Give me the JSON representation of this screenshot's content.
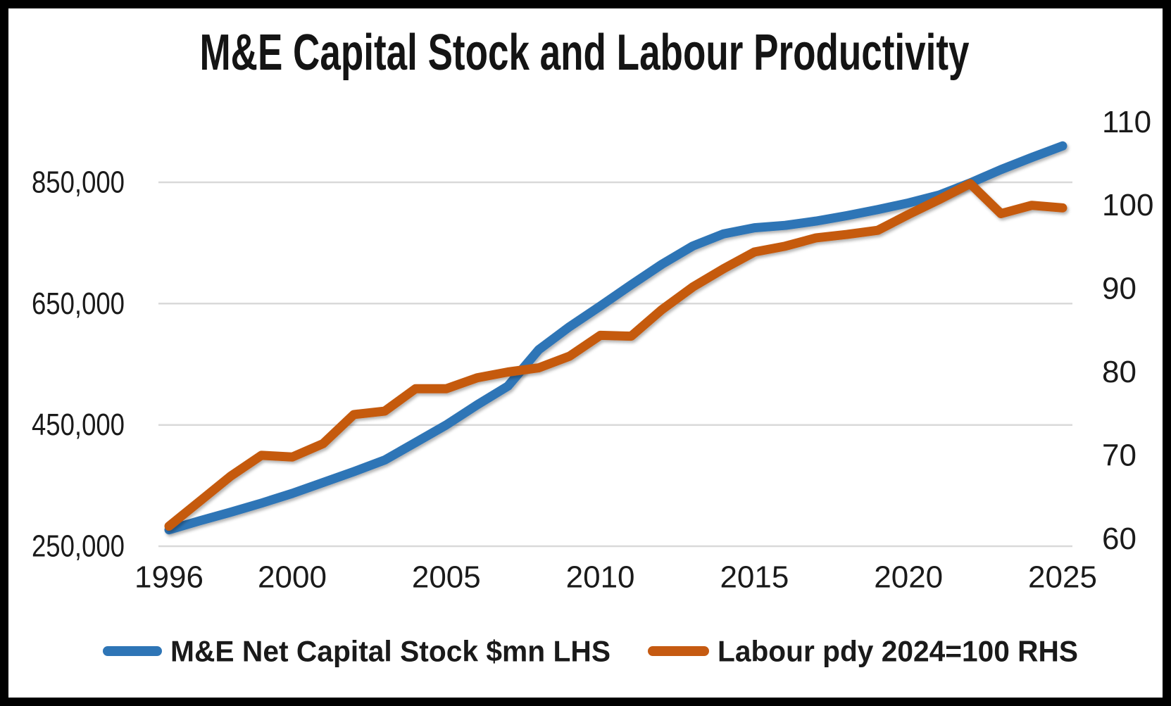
{
  "title": "M&E Capital Stock and Labour Productivity",
  "legend": {
    "items": [
      {
        "label": "M&E Net Capital Stock $mn LHS",
        "color": "#2E75B6"
      },
      {
        "label": "Labour pdy 2024=100 RHS",
        "color": "#C55A11"
      }
    ]
  },
  "colors": {
    "background": "#FFFFFF",
    "frame": "#000000",
    "gridline": "#D9D9D9",
    "text": "#1A1A1A",
    "series_blue": "#2E75B6",
    "series_orange": "#C55A11"
  },
  "chart_data": {
    "type": "line",
    "title": "M&E Capital Stock and Labour Productivity",
    "x": [
      1996,
      1997,
      1998,
      1999,
      2000,
      2001,
      2002,
      2003,
      2004,
      2005,
      2006,
      2007,
      2008,
      2009,
      2010,
      2011,
      2012,
      2013,
      2014,
      2015,
      2016,
      2017,
      2018,
      2019,
      2020,
      2021,
      2022,
      2023,
      2024,
      2025
    ],
    "x_tick_labels": [
      "1996",
      "2000",
      "2005",
      "2010",
      "2015",
      "2020",
      "2025"
    ],
    "left_axis": {
      "label": "M&E Net Capital Stock $mn",
      "tick_labels": [
        "850,000",
        "650,000",
        "450,000",
        "250,000"
      ],
      "tick_values": [
        850000,
        650000,
        450000,
        250000
      ],
      "range": [
        250000,
        950000
      ]
    },
    "right_axis": {
      "label": "Labour pdy 2024=100",
      "tick_labels": [
        "110",
        "100",
        "90",
        "80",
        "70",
        "60"
      ],
      "tick_values": [
        110,
        100,
        90,
        80,
        70,
        60
      ],
      "range": [
        60,
        110
      ]
    },
    "grid": "horizontal-gridlines-on",
    "legend_position": "bottom",
    "series": [
      {
        "name": "M&E Net Capital Stock $mn LHS",
        "axis": "left",
        "color": "#2E75B6",
        "values": [
          277000,
          292000,
          306000,
          321000,
          337000,
          355000,
          373000,
          392000,
          421000,
          450000,
          483000,
          514000,
          574000,
          612000,
          646000,
          681000,
          715000,
          745000,
          765000,
          775000,
          779000,
          786000,
          795000,
          805000,
          816000,
          829000,
          849000,
          871000,
          891000,
          910000
        ]
      },
      {
        "name": "Labour pdy 2024=100 RHS",
        "axis": "right",
        "color": "#C55A11",
        "values": [
          61.5,
          64.5,
          67.5,
          70.0,
          69.8,
          71.4,
          74.9,
          75.3,
          78.0,
          78.0,
          79.3,
          80.0,
          80.5,
          81.9,
          84.4,
          84.3,
          87.5,
          90.2,
          92.4,
          94.4,
          95.1,
          96.1,
          96.5,
          97.0,
          98.9,
          100.7,
          102.6,
          99.0,
          100.0,
          99.7
        ]
      }
    ]
  }
}
